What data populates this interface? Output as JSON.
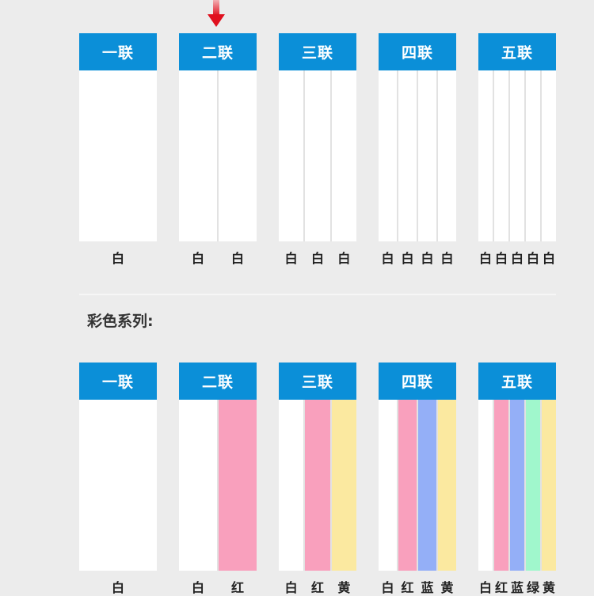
{
  "white_series": [
    {
      "title": "一联",
      "strips": [
        {
          "label": "白",
          "color": "#ffffff"
        }
      ]
    },
    {
      "title": "二联",
      "strips": [
        {
          "label": "白",
          "color": "#ffffff"
        },
        {
          "label": "白",
          "color": "#ffffff"
        }
      ]
    },
    {
      "title": "三联",
      "strips": [
        {
          "label": "白",
          "color": "#ffffff"
        },
        {
          "label": "白",
          "color": "#ffffff"
        },
        {
          "label": "白",
          "color": "#ffffff"
        }
      ]
    },
    {
      "title": "四联",
      "strips": [
        {
          "label": "白",
          "color": "#ffffff"
        },
        {
          "label": "白",
          "color": "#ffffff"
        },
        {
          "label": "白",
          "color": "#ffffff"
        },
        {
          "label": "白",
          "color": "#ffffff"
        }
      ]
    },
    {
      "title": "五联",
      "strips": [
        {
          "label": "白",
          "color": "#ffffff"
        },
        {
          "label": "白",
          "color": "#ffffff"
        },
        {
          "label": "白",
          "color": "#ffffff"
        },
        {
          "label": "白",
          "color": "#ffffff"
        },
        {
          "label": "白",
          "color": "#ffffff"
        }
      ]
    }
  ],
  "color_section_title": "彩色系列:",
  "color_series": [
    {
      "title": "一联",
      "strips": [
        {
          "label": "白",
          "color": "#ffffff"
        }
      ]
    },
    {
      "title": "二联",
      "strips": [
        {
          "label": "白",
          "color": "#ffffff"
        },
        {
          "label": "红",
          "color": "#f9a0bd"
        }
      ]
    },
    {
      "title": "三联",
      "strips": [
        {
          "label": "白",
          "color": "#ffffff"
        },
        {
          "label": "红",
          "color": "#f9a0bd"
        },
        {
          "label": "黄",
          "color": "#fbe9a0"
        }
      ]
    },
    {
      "title": "四联",
      "strips": [
        {
          "label": "白",
          "color": "#ffffff"
        },
        {
          "label": "红",
          "color": "#f9a0bd"
        },
        {
          "label": "蓝",
          "color": "#94aff7"
        },
        {
          "label": "黄",
          "color": "#fbe9a0"
        }
      ]
    },
    {
      "title": "五联",
      "strips": [
        {
          "label": "白",
          "color": "#ffffff"
        },
        {
          "label": "红",
          "color": "#f9a0bd"
        },
        {
          "label": "蓝",
          "color": "#94aff7"
        },
        {
          "label": "绿",
          "color": "#a0f7cc"
        },
        {
          "label": "黄",
          "color": "#fbe9a0"
        }
      ]
    }
  ],
  "colors": {
    "header": "#0b8fd8",
    "arrow": "#e0101e",
    "background": "#ececec"
  }
}
